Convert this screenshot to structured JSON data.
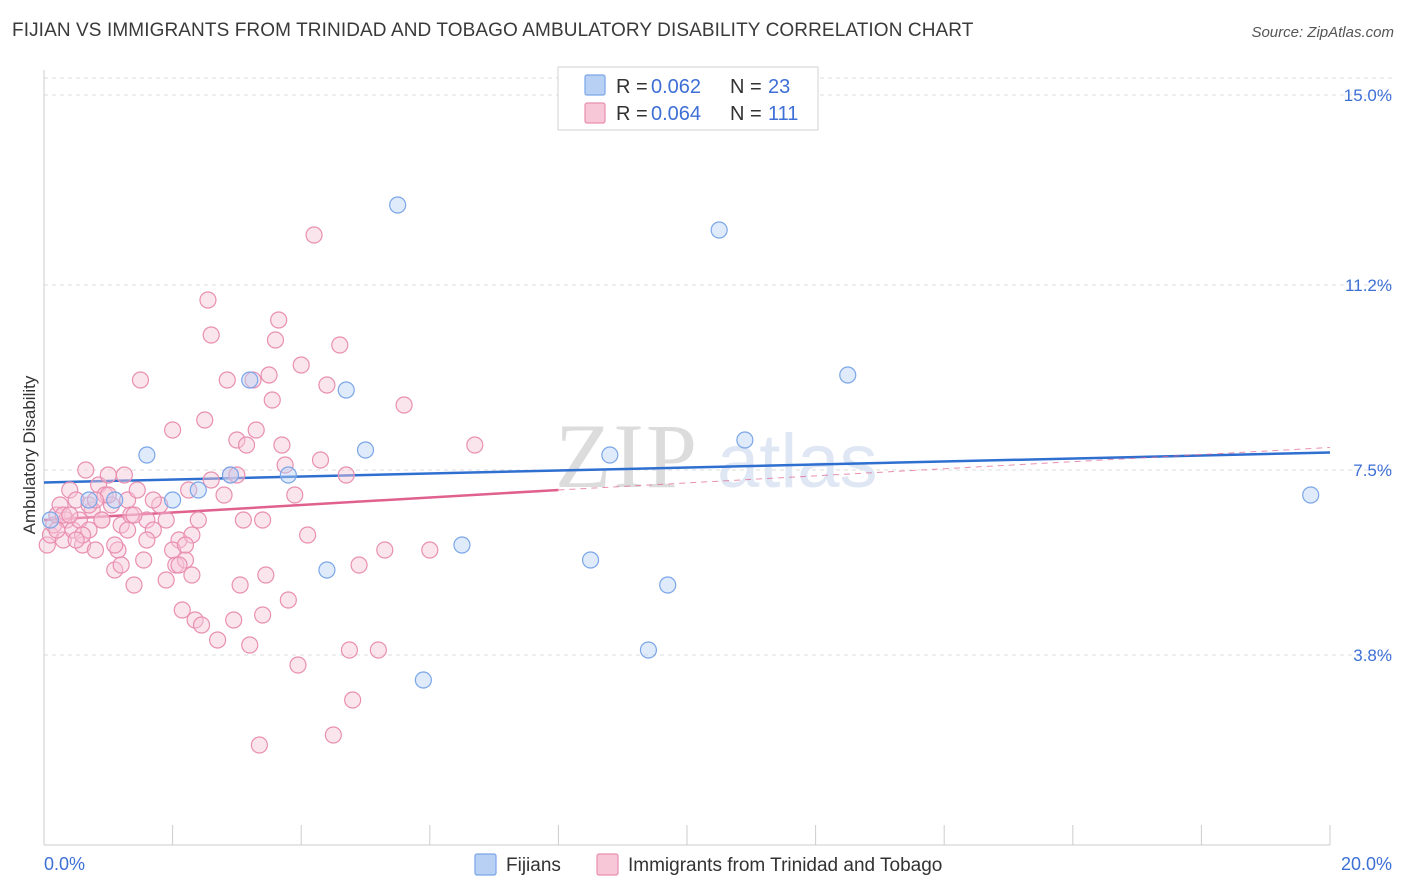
{
  "chart_data": {
    "type": "scatter",
    "title": "FIJIAN VS IMMIGRANTS FROM TRINIDAD AND TOBAGO AMBULATORY DISABILITY CORRELATION CHART",
    "source": "Source: ZipAtlas.com",
    "ylabel": "Ambulatory Disability",
    "xlim": [
      0,
      20
    ],
    "ylim": [
      0,
      15.5
    ],
    "x_tick_labels": [
      "0.0%",
      "20.0%"
    ],
    "y_ticks": [
      3.8,
      7.5,
      11.2,
      15.0
    ],
    "y_tick_labels": [
      "3.8%",
      "7.5%",
      "11.2%",
      "15.0%"
    ],
    "watermark": "ZIPatlas",
    "legend": {
      "rows": [
        {
          "r_label": "R =",
          "r_value": "0.062",
          "n_label": "N =",
          "n_value": "23"
        },
        {
          "r_label": "R =",
          "r_value": "0.064",
          "n_label": "N =",
          "n_value": "111"
        }
      ]
    },
    "series": [
      {
        "name": "Fijians",
        "color": "#7aa6e8",
        "fill": "#b8d0f4",
        "line_color": "#2f6fd0",
        "trend": {
          "x0": 0.0,
          "y0": 7.25,
          "x1": 20.0,
          "y1": 7.85
        },
        "points": [
          [
            0.1,
            6.5
          ],
          [
            0.7,
            6.9
          ],
          [
            1.1,
            6.9
          ],
          [
            1.6,
            7.8
          ],
          [
            2.0,
            6.9
          ],
          [
            2.4,
            7.1
          ],
          [
            2.9,
            7.4
          ],
          [
            3.2,
            9.3
          ],
          [
            3.8,
            7.4
          ],
          [
            4.4,
            5.5
          ],
          [
            4.7,
            9.1
          ],
          [
            5.0,
            7.9
          ],
          [
            5.5,
            12.8
          ],
          [
            5.9,
            3.3
          ],
          [
            6.5,
            6.0
          ],
          [
            8.5,
            5.7
          ],
          [
            8.8,
            7.8
          ],
          [
            9.4,
            3.9
          ],
          [
            9.7,
            5.2
          ],
          [
            10.5,
            12.3
          ],
          [
            10.9,
            8.1
          ],
          [
            12.5,
            9.4
          ],
          [
            19.7,
            7.0
          ]
        ]
      },
      {
        "name": "Immigrants from Trinidad and Tobago",
        "color": "#e98fb0",
        "fill": "#f7c6d7",
        "line_color": "#e0608e",
        "trend": {
          "x0": 0.0,
          "y0": 6.5,
          "x1": 8.0,
          "y1": 7.1
        },
        "trend_dashed": {
          "x0": 8.0,
          "y0": 7.1,
          "x1": 20.0,
          "y1": 7.95
        },
        "points": [
          [
            0.05,
            6.0
          ],
          [
            0.1,
            6.2
          ],
          [
            0.15,
            6.4
          ],
          [
            0.2,
            6.6
          ],
          [
            0.25,
            6.8
          ],
          [
            0.3,
            6.1
          ],
          [
            0.35,
            6.5
          ],
          [
            0.4,
            7.1
          ],
          [
            0.45,
            6.3
          ],
          [
            0.5,
            6.9
          ],
          [
            0.55,
            6.5
          ],
          [
            0.6,
            6.0
          ],
          [
            0.65,
            7.5
          ],
          [
            0.7,
            6.3
          ],
          [
            0.75,
            6.7
          ],
          [
            0.8,
            5.9
          ],
          [
            0.85,
            7.2
          ],
          [
            0.9,
            6.5
          ],
          [
            0.95,
            7.0
          ],
          [
            1.0,
            7.4
          ],
          [
            1.05,
            6.8
          ],
          [
            1.1,
            5.5
          ],
          [
            1.15,
            5.9
          ],
          [
            1.2,
            6.4
          ],
          [
            1.25,
            7.4
          ],
          [
            1.3,
            6.9
          ],
          [
            1.35,
            6.6
          ],
          [
            1.4,
            5.2
          ],
          [
            1.45,
            7.1
          ],
          [
            1.5,
            9.3
          ],
          [
            1.55,
            5.7
          ],
          [
            1.6,
            6.5
          ],
          [
            1.7,
            6.3
          ],
          [
            1.8,
            6.8
          ],
          [
            1.9,
            5.3
          ],
          [
            2.0,
            8.3
          ],
          [
            2.05,
            5.6
          ],
          [
            2.1,
            6.1
          ],
          [
            2.15,
            4.7
          ],
          [
            2.2,
            5.7
          ],
          [
            2.25,
            7.1
          ],
          [
            2.3,
            5.4
          ],
          [
            2.35,
            4.5
          ],
          [
            2.4,
            6.5
          ],
          [
            2.45,
            4.4
          ],
          [
            2.5,
            8.5
          ],
          [
            2.55,
            10.9
          ],
          [
            2.6,
            10.2
          ],
          [
            2.7,
            4.1
          ],
          [
            2.8,
            7.0
          ],
          [
            2.85,
            9.3
          ],
          [
            2.9,
            7.4
          ],
          [
            2.95,
            4.5
          ],
          [
            3.0,
            8.1
          ],
          [
            3.05,
            5.2
          ],
          [
            3.1,
            6.5
          ],
          [
            3.15,
            8.0
          ],
          [
            3.2,
            4.0
          ],
          [
            3.25,
            9.3
          ],
          [
            3.3,
            8.3
          ],
          [
            3.35,
            2.0
          ],
          [
            3.4,
            4.6
          ],
          [
            3.45,
            5.4
          ],
          [
            3.5,
            9.4
          ],
          [
            3.55,
            8.9
          ],
          [
            3.6,
            10.1
          ],
          [
            3.65,
            10.5
          ],
          [
            3.7,
            8.0
          ],
          [
            3.75,
            7.6
          ],
          [
            3.8,
            4.9
          ],
          [
            3.9,
            7.0
          ],
          [
            3.95,
            3.6
          ],
          [
            4.0,
            9.6
          ],
          [
            4.1,
            6.2
          ],
          [
            4.2,
            12.2
          ],
          [
            4.3,
            7.7
          ],
          [
            4.4,
            9.2
          ],
          [
            4.5,
            2.2
          ],
          [
            4.6,
            10.0
          ],
          [
            4.7,
            7.4
          ],
          [
            4.75,
            3.9
          ],
          [
            4.8,
            2.9
          ],
          [
            4.9,
            5.6
          ],
          [
            5.2,
            3.9
          ],
          [
            5.3,
            5.9
          ],
          [
            5.6,
            8.8
          ],
          [
            6.0,
            5.9
          ],
          [
            6.7,
            8.0
          ],
          [
            1.0,
            7.0
          ],
          [
            0.9,
            6.5
          ],
          [
            0.6,
            6.2
          ],
          [
            1.3,
            6.3
          ],
          [
            1.7,
            6.9
          ],
          [
            2.0,
            5.9
          ],
          [
            0.3,
            6.6
          ],
          [
            0.5,
            6.1
          ],
          [
            1.9,
            6.5
          ],
          [
            2.3,
            6.2
          ],
          [
            0.2,
            6.3
          ],
          [
            0.4,
            6.6
          ],
          [
            0.7,
            6.8
          ],
          [
            1.1,
            6.0
          ],
          [
            1.4,
            6.6
          ],
          [
            1.6,
            6.1
          ],
          [
            2.2,
            6.0
          ],
          [
            2.6,
            7.3
          ],
          [
            3.0,
            7.4
          ],
          [
            3.4,
            6.5
          ],
          [
            2.1,
            5.6
          ],
          [
            1.2,
            5.6
          ],
          [
            0.8,
            6.9
          ]
        ]
      }
    ]
  }
}
